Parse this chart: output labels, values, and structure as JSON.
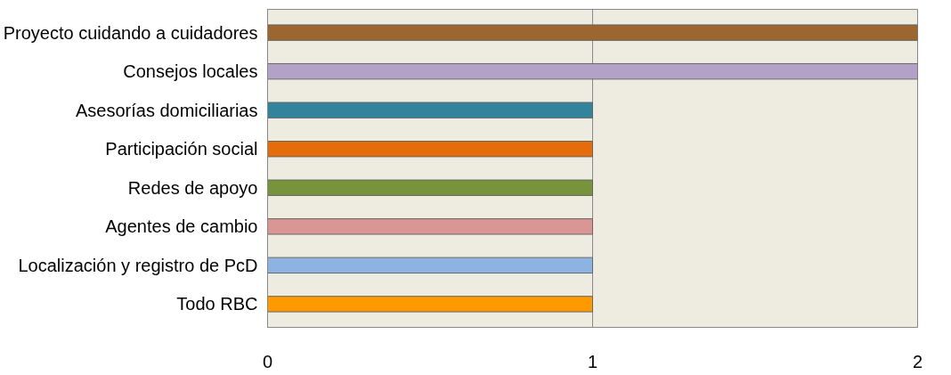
{
  "chart_data": {
    "type": "bar",
    "orientation": "horizontal",
    "categories": [
      "Proyecto cuidando a cuidadores",
      "Consejos locales",
      "Asesorías domiciliarias",
      "Participación social",
      "Redes de apoyo",
      "Agentes de cambio",
      "Localización y registro de PcD",
      "Todo RBC"
    ],
    "values": [
      2,
      2,
      1,
      1,
      1,
      1,
      1,
      1
    ],
    "colors": [
      "#9c6630",
      "#b3a2c7",
      "#31849b",
      "#e46c0a",
      "#77933c",
      "#d99694",
      "#8db3e2",
      "#ff9900"
    ],
    "xlim": [
      0,
      2
    ],
    "xticks": [
      0,
      1,
      2
    ],
    "grid": "x"
  }
}
